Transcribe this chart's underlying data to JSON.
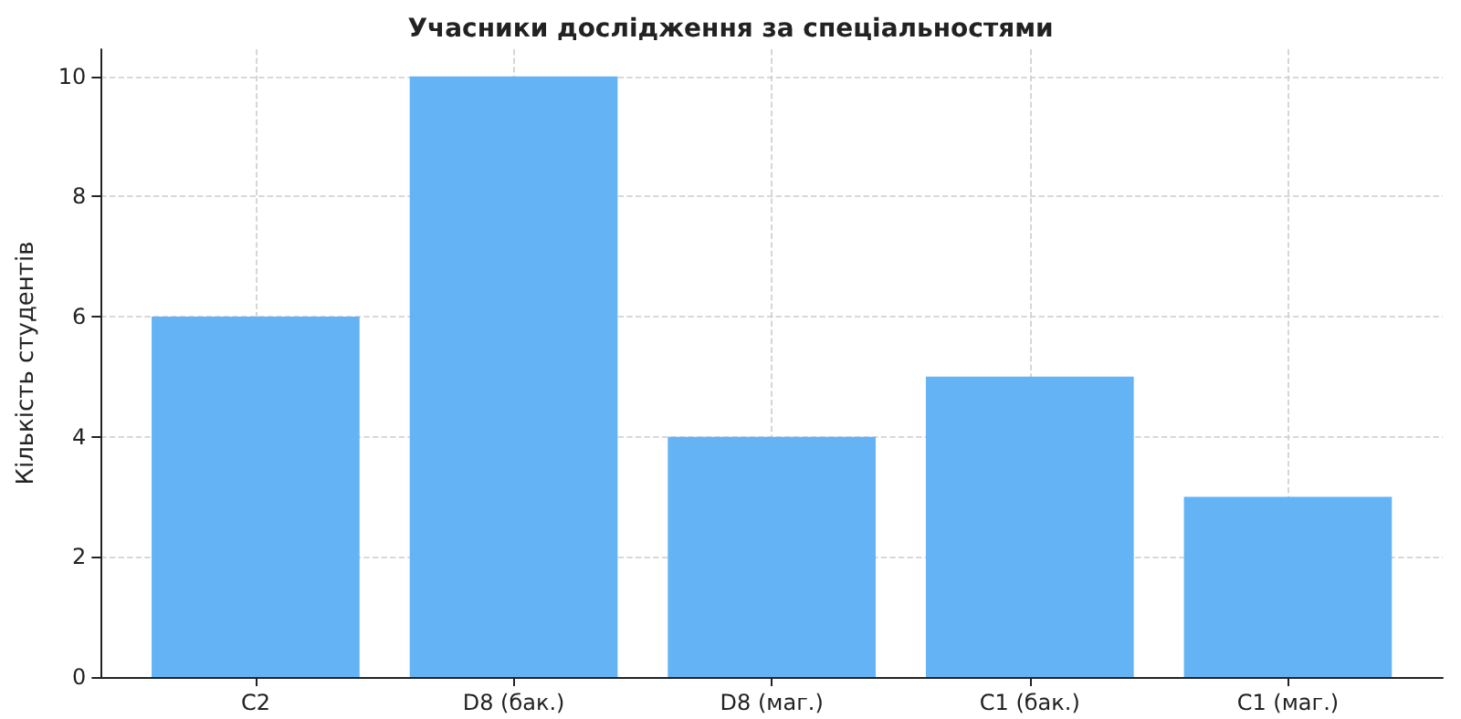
{
  "chart_data": {
    "type": "bar",
    "title": "Учасники дослідження за спеціальностями",
    "ylabel": "Кількість студентів",
    "categories": [
      "C2",
      "D8 (бак.)",
      "D8 (маг.)",
      "C1 (бак.)",
      "C1 (маг.)"
    ],
    "values": [
      6,
      10,
      4,
      5,
      3
    ],
    "color": "#63b3f5",
    "ylim": [
      0,
      10.45
    ],
    "yticks": [
      0,
      2,
      4,
      6,
      8,
      10
    ],
    "grid": true
  }
}
